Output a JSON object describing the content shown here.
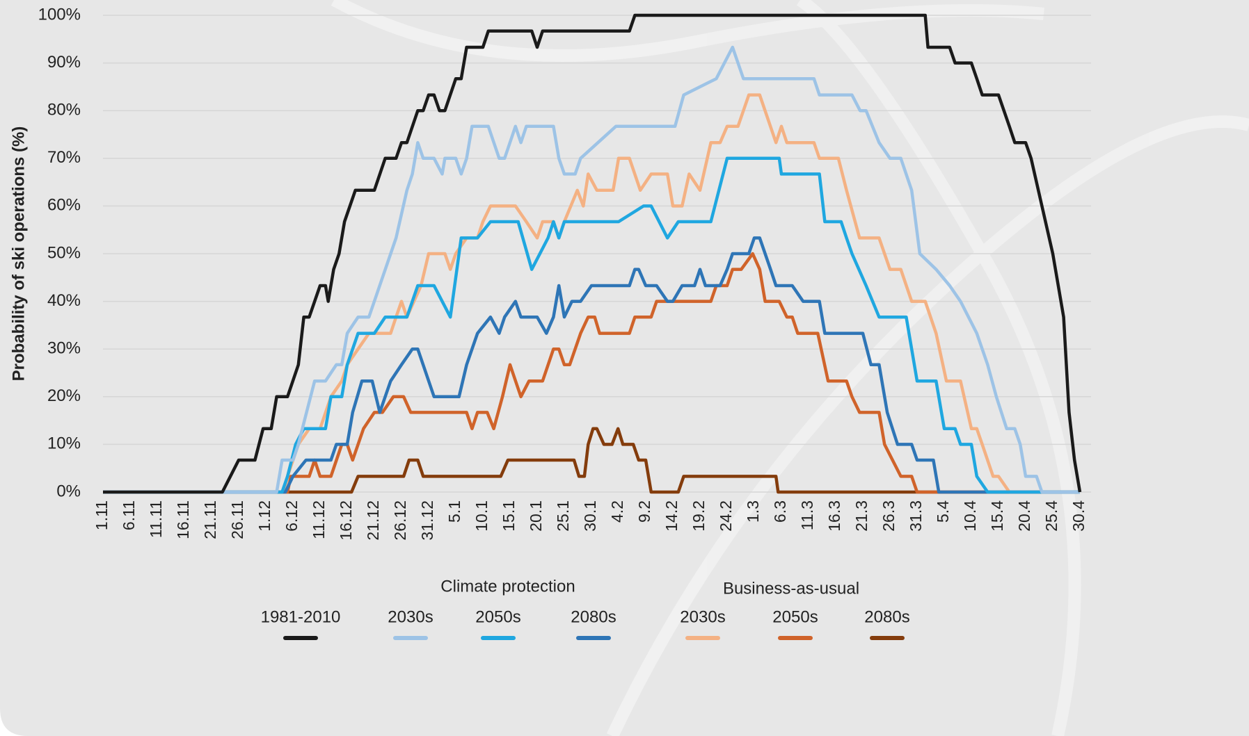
{
  "chart_data": {
    "type": "line",
    "ylabel": "Probability of ski operations (%)",
    "xlim": [
      0,
      180
    ],
    "xticks": [
      {
        "value": 0,
        "label": "1.11"
      },
      {
        "value": 5,
        "label": "6.11"
      },
      {
        "value": 10,
        "label": "11.11"
      },
      {
        "value": 15,
        "label": "16.11"
      },
      {
        "value": 20,
        "label": "21.11"
      },
      {
        "value": 25,
        "label": "26.11"
      },
      {
        "value": 30,
        "label": "1.12"
      },
      {
        "value": 35,
        "label": "6.12"
      },
      {
        "value": 40,
        "label": "11.12"
      },
      {
        "value": 45,
        "label": "16.12"
      },
      {
        "value": 50,
        "label": "21.12"
      },
      {
        "value": 55,
        "label": "26.12"
      },
      {
        "value": 60,
        "label": "31.12"
      },
      {
        "value": 65,
        "label": "5.1"
      },
      {
        "value": 70,
        "label": "10.1"
      },
      {
        "value": 75,
        "label": "15.1"
      },
      {
        "value": 80,
        "label": "20.1"
      },
      {
        "value": 85,
        "label": "25.1"
      },
      {
        "value": 90,
        "label": "30.1"
      },
      {
        "value": 95,
        "label": "4.2"
      },
      {
        "value": 100,
        "label": "9.2"
      },
      {
        "value": 105,
        "label": "14.2"
      },
      {
        "value": 110,
        "label": "19.2"
      },
      {
        "value": 115,
        "label": "24.2"
      },
      {
        "value": 120,
        "label": "1.3"
      },
      {
        "value": 125,
        "label": "6.3"
      },
      {
        "value": 130,
        "label": "11.3"
      },
      {
        "value": 135,
        "label": "16.3"
      },
      {
        "value": 140,
        "label": "21.3"
      },
      {
        "value": 145,
        "label": "26.3"
      },
      {
        "value": 150,
        "label": "31.3"
      },
      {
        "value": 155,
        "label": "5.4"
      },
      {
        "value": 160,
        "label": "10.4"
      },
      {
        "value": 165,
        "label": "15.4"
      },
      {
        "value": 170,
        "label": "20.4"
      },
      {
        "value": 175,
        "label": "25.4"
      },
      {
        "value": 180,
        "label": "30.4"
      }
    ],
    "ylim": [
      0,
      100
    ],
    "yticks": [
      {
        "value": 0,
        "label": "0%"
      },
      {
        "value": 10,
        "label": "10%"
      },
      {
        "value": 20,
        "label": "20%"
      },
      {
        "value": 30,
        "label": "30%"
      },
      {
        "value": 40,
        "label": "40%"
      },
      {
        "value": 50,
        "label": "50%"
      },
      {
        "value": 60,
        "label": "60%"
      },
      {
        "value": 70,
        "label": "70%"
      },
      {
        "value": 80,
        "label": "80%"
      },
      {
        "value": 90,
        "label": "90%"
      },
      {
        "value": 100,
        "label": "100%"
      }
    ],
    "grid": true,
    "legend_titles": [
      "Climate protection",
      "Business-as-usual"
    ],
    "series": [
      {
        "name": "1981-2010",
        "color": "#1a1a1a",
        "x": [
          0,
          22,
          25,
          28,
          29.5,
          31,
          32,
          34,
          36,
          37,
          38,
          40,
          41,
          41.5,
          42.5,
          43.5,
          44.5,
          45.5,
          46.5,
          50,
          52,
          54,
          55,
          56,
          58,
          59,
          60,
          61,
          62,
          63,
          65,
          66,
          67,
          70,
          71,
          79,
          80,
          81,
          97,
          98,
          151.5,
          152,
          156,
          157,
          160,
          161,
          162,
          165,
          167,
          168,
          170,
          171,
          173,
          175,
          177,
          178,
          179,
          180
        ],
        "values": [
          0,
          0,
          6.7,
          6.7,
          13.3,
          13.3,
          20,
          20,
          26.7,
          36.7,
          36.7,
          43.3,
          43.3,
          40,
          46.7,
          50,
          56.7,
          60,
          63.3,
          63.3,
          70,
          70,
          73.3,
          73.3,
          80,
          80,
          83.3,
          83.3,
          80,
          80,
          86.7,
          86.7,
          93.3,
          93.3,
          96.7,
          96.7,
          93.3,
          96.7,
          96.7,
          100,
          100,
          93.3,
          93.3,
          90,
          90,
          86.7,
          83.3,
          83.3,
          76.7,
          73.3,
          73.3,
          70,
          60,
          50,
          36.7,
          16.7,
          6.7,
          0
        ]
      },
      {
        "name": "2030s",
        "color": "#9dc3e6",
        "x": [
          0,
          32,
          33,
          35,
          36,
          37.5,
          39,
          41,
          43,
          44,
          45,
          47,
          49,
          54,
          56,
          57,
          58,
          59,
          61,
          62.5,
          63,
          65,
          66,
          67,
          68,
          71,
          73,
          74,
          76,
          77,
          78,
          83,
          84,
          85,
          87,
          88,
          94.5,
          105.4,
          107,
          113,
          116,
          118,
          131,
          132,
          138,
          139.5,
          140.6,
          143,
          145,
          147,
          149,
          150.5,
          153.5,
          156,
          158,
          161,
          163,
          164.6,
          166.5,
          168,
          169,
          170,
          172,
          173,
          180
        ],
        "values": [
          0,
          0,
          6.7,
          6.7,
          10,
          16.7,
          23.3,
          23.3,
          26.7,
          26.7,
          33.3,
          36.7,
          36.7,
          53.3,
          63.3,
          66.7,
          73.3,
          70,
          70,
          66.7,
          70,
          70,
          66.7,
          70,
          76.7,
          76.7,
          70,
          70,
          76.7,
          73.3,
          76.7,
          76.7,
          70,
          66.7,
          66.7,
          70,
          76.7,
          76.7,
          83.3,
          86.7,
          93.3,
          86.7,
          86.7,
          83.3,
          83.3,
          80,
          80,
          73.3,
          70,
          70,
          63.3,
          50,
          46.7,
          43.3,
          40,
          33.3,
          26.7,
          20,
          13.3,
          13.3,
          10,
          3.3,
          3.3,
          0,
          0
        ]
      },
      {
        "name": "2050s",
        "color": "#1fa7e0",
        "x": [
          0,
          33,
          34,
          35.5,
          37,
          41,
          42,
          44,
          45,
          47,
          50,
          52,
          56,
          58,
          61,
          64,
          66,
          69,
          71.4,
          76.5,
          79,
          82,
          83,
          84,
          85,
          86.4,
          95,
          99.6,
          101,
          104,
          106,
          112,
          115,
          124.6,
          125,
          132,
          133,
          136,
          137,
          138,
          140.6,
          143,
          148,
          150,
          153.5,
          155,
          157,
          158,
          160,
          161,
          163,
          180
        ],
        "values": [
          0,
          0,
          3.3,
          10,
          13.3,
          13.3,
          20,
          20,
          26.7,
          33.3,
          33.3,
          36.7,
          36.7,
          43.3,
          43.3,
          36.7,
          53.3,
          53.3,
          56.7,
          56.7,
          46.7,
          53.3,
          56.7,
          53.3,
          56.7,
          56.7,
          56.7,
          60,
          60,
          53.3,
          56.7,
          56.7,
          70,
          70,
          66.7,
          66.7,
          56.7,
          56.7,
          53.3,
          50,
          43.3,
          36.7,
          36.7,
          23.3,
          23.3,
          13.3,
          13.3,
          10,
          10,
          3.3,
          0,
          0
        ]
      },
      {
        "name": "2080s",
        "color": "#2e75b6",
        "x": [
          0,
          33.6,
          35,
          37.4,
          42,
          43,
          45,
          46,
          47.7,
          49.6,
          51,
          53,
          55,
          57,
          58,
          61,
          65.6,
          67,
          69,
          71.4,
          73,
          74,
          76,
          77,
          80,
          81.7,
          83,
          84,
          85,
          86.4,
          88,
          90,
          97,
          98,
          98.7,
          100,
          102,
          104,
          105,
          106.7,
          109,
          110,
          111,
          113.7,
          115,
          116,
          119,
          120,
          121,
          123,
          124,
          127,
          129,
          132,
          133,
          140,
          141.5,
          143,
          144.5,
          146.4,
          149,
          150,
          153,
          154,
          180
        ],
        "values": [
          0,
          0,
          3.3,
          6.7,
          6.7,
          10,
          10,
          16.7,
          23.3,
          23.3,
          16.7,
          23.3,
          26.7,
          30,
          30,
          20,
          20,
          26.7,
          33.3,
          36.7,
          33.3,
          36.7,
          40,
          36.7,
          36.7,
          33.3,
          36.7,
          43.3,
          36.7,
          40,
          40,
          43.3,
          43.3,
          46.7,
          46.7,
          43.3,
          43.3,
          40,
          40,
          43.3,
          43.3,
          46.7,
          43.3,
          43.3,
          46.7,
          50,
          50,
          53.3,
          53.3,
          46.7,
          43.3,
          43.3,
          40,
          40,
          33.3,
          33.3,
          26.7,
          26.7,
          16.7,
          10,
          10,
          6.7,
          6.7,
          0,
          0
        ]
      },
      {
        "name": "2030s",
        "color": "#f4b183",
        "x": [
          0,
          33.6,
          34,
          36,
          38,
          40,
          42,
          44,
          45,
          47,
          49,
          53,
          54,
          55,
          56,
          57.3,
          58.6,
          60,
          63,
          64,
          65,
          67,
          69,
          70,
          71.4,
          76,
          78,
          80,
          81,
          83,
          84,
          85,
          87.4,
          88.5,
          89.4,
          91,
          94,
          95,
          97,
          99,
          101,
          104,
          105,
          106.7,
          108,
          110,
          112,
          113.7,
          115,
          117,
          118,
          119,
          121,
          124,
          125,
          126,
          131,
          132,
          135.5,
          137,
          139.4,
          143,
          145,
          147,
          149,
          151.5,
          153.5,
          155.4,
          158,
          160,
          161,
          162,
          164,
          165,
          167,
          180
        ],
        "values": [
          0,
          0,
          3.3,
          10,
          13.3,
          13.3,
          20,
          23.3,
          26.7,
          30,
          33.3,
          33.3,
          36.7,
          40,
          36.7,
          40,
          43.3,
          50,
          50,
          46.7,
          50,
          53.3,
          53.3,
          56.7,
          60,
          60,
          56.7,
          53.3,
          56.7,
          56.7,
          53.3,
          56.7,
          63.3,
          60,
          66.7,
          63.3,
          63.3,
          70,
          70,
          63.3,
          66.7,
          66.7,
          60,
          60,
          66.7,
          63.3,
          73.3,
          73.3,
          76.7,
          76.7,
          80,
          83.3,
          83.3,
          73.3,
          76.7,
          73.3,
          73.3,
          70,
          70,
          63.3,
          53.3,
          53.3,
          46.7,
          46.7,
          40,
          40,
          33.3,
          23.3,
          23.3,
          13.3,
          13.3,
          10,
          3.3,
          3.3,
          0,
          0
        ]
      },
      {
        "name": "2050s",
        "color": "#d0632a",
        "x": [
          0,
          34,
          34.6,
          38,
          39,
          40,
          42,
          44,
          45,
          46,
          48,
          50,
          51.5,
          53.5,
          55.4,
          56.7,
          67,
          68,
          69,
          70.8,
          72,
          73.6,
          75,
          77,
          78.5,
          81,
          83,
          84,
          85,
          86,
          88,
          89.4,
          90.6,
          91.5,
          97,
          98,
          101,
          102,
          112,
          113,
          115,
          116,
          117.6,
          119.7,
          121,
          122,
          124.6,
          126,
          127,
          128,
          131.7,
          133.6,
          137,
          138,
          139.4,
          143,
          144,
          147,
          149,
          150,
          180
        ],
        "values": [
          0,
          0,
          3.3,
          3.3,
          6.7,
          3.3,
          3.3,
          10,
          10,
          6.7,
          13.3,
          16.7,
          16.7,
          20,
          20,
          16.7,
          16.7,
          13.3,
          16.7,
          16.7,
          13.3,
          20,
          26.7,
          20,
          23.3,
          23.3,
          30,
          30,
          26.7,
          26.7,
          33.3,
          36.7,
          36.7,
          33.3,
          33.3,
          36.7,
          36.7,
          40,
          40,
          43.3,
          43.3,
          46.7,
          46.7,
          50,
          46.7,
          40,
          40,
          36.7,
          36.7,
          33.3,
          33.3,
          23.3,
          23.3,
          20,
          16.7,
          16.7,
          10,
          3.3,
          3.3,
          0,
          0
        ]
      },
      {
        "name": "2080s",
        "color": "#843c0c",
        "x": [
          0,
          45.8,
          47,
          55.4,
          56.4,
          58,
          59,
          73.3,
          74.6,
          86.8,
          87.7,
          88.7,
          89.4,
          90.3,
          91,
          92.3,
          93.8,
          94.9,
          95.8,
          97.7,
          98.7,
          100,
          101,
          106,
          107,
          124,
          124.4,
          180
        ],
        "values": [
          0,
          0,
          3.3,
          3.3,
          6.7,
          6.7,
          3.3,
          3.3,
          6.7,
          6.7,
          3.3,
          3.3,
          10,
          13.3,
          13.3,
          10,
          10,
          13.3,
          10,
          10,
          6.7,
          6.7,
          0,
          0,
          3.3,
          3.3,
          0,
          0
        ]
      }
    ]
  }
}
